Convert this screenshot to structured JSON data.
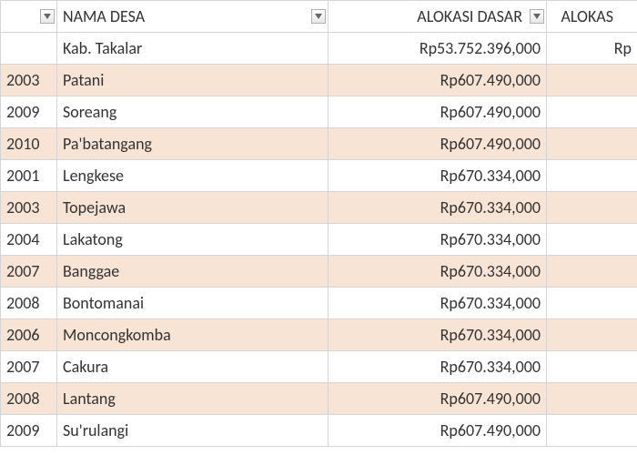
{
  "headers": {
    "code": "",
    "nama": "NAMA DESA",
    "alokasi_dasar": "ALOKASI DASAR",
    "alokasi2": "ALOKAS"
  },
  "summary_row": {
    "code": "",
    "nama": "Kab. Takalar",
    "alokasi_dasar": "Rp53.752.396,000",
    "alokasi2": "Rp"
  },
  "rows": [
    {
      "code": "2003",
      "nama": "Patani",
      "alokasi_dasar": "Rp607.490,000",
      "alokasi2": ""
    },
    {
      "code": "2009",
      "nama": "Soreang",
      "alokasi_dasar": "Rp607.490,000",
      "alokasi2": ""
    },
    {
      "code": "2010",
      "nama": "Pa'batangang",
      "alokasi_dasar": "Rp607.490,000",
      "alokasi2": ""
    },
    {
      "code": "2001",
      "nama": "Lengkese",
      "alokasi_dasar": "Rp670.334,000",
      "alokasi2": ""
    },
    {
      "code": "2003",
      "nama": "Topejawa",
      "alokasi_dasar": "Rp670.334,000",
      "alokasi2": ""
    },
    {
      "code": "2004",
      "nama": "Lakatong",
      "alokasi_dasar": "Rp670.334,000",
      "alokasi2": ""
    },
    {
      "code": "2007",
      "nama": "Banggae",
      "alokasi_dasar": "Rp670.334,000",
      "alokasi2": ""
    },
    {
      "code": "2008",
      "nama": "Bontomanai",
      "alokasi_dasar": "Rp670.334,000",
      "alokasi2": ""
    },
    {
      "code": "2006",
      "nama": "Moncongkomba",
      "alokasi_dasar": "Rp670.334,000",
      "alokasi2": ""
    },
    {
      "code": "2007",
      "nama": "Cakura",
      "alokasi_dasar": "Rp670.334,000",
      "alokasi2": ""
    },
    {
      "code": "2008",
      "nama": "Lantang",
      "alokasi_dasar": "Rp607.490,000",
      "alokasi2": ""
    },
    {
      "code": "2009",
      "nama": "Su'rulangi",
      "alokasi_dasar": "Rp607.490,000",
      "alokasi2": ""
    }
  ],
  "colors": {
    "banded_bg": "#f7e4d5",
    "border": "#d4d4d4",
    "text": "#333333"
  }
}
